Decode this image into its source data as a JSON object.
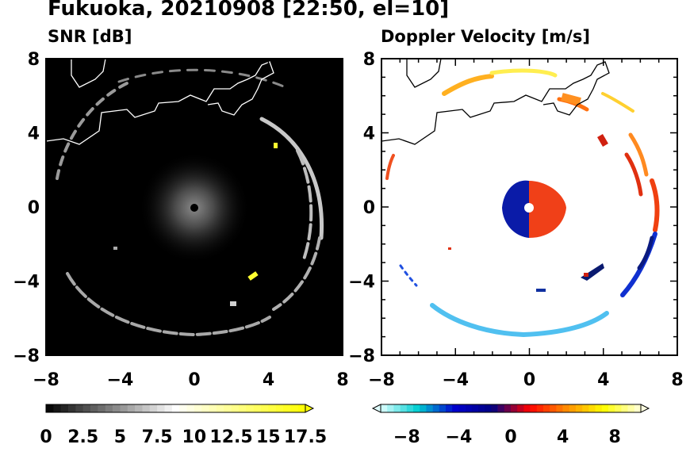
{
  "title": "Fukuoka, 20210908 [22:50, el=10]",
  "chart_data": [
    {
      "type": "heatmap",
      "title": "SNR [dB]",
      "xlim": [
        -8,
        8
      ],
      "ylim": [
        -8,
        8
      ],
      "xticks": [
        "−8",
        "−4",
        "0",
        "4",
        "8"
      ],
      "yticks": [
        "8",
        "4",
        "0",
        "−4",
        "−8"
      ],
      "colorbar": {
        "range": [
          0,
          17.5
        ],
        "tick_labels": [
          "0",
          "2.5",
          "5",
          "7.5",
          "10",
          "12.5",
          "15",
          "17.5"
        ],
        "colors": [
          "#000000",
          "#ffffff",
          "#ffff00"
        ]
      }
    },
    {
      "type": "heatmap",
      "title": "Doppler Velocity [m/s]",
      "xlim": [
        -8,
        8
      ],
      "ylim": [
        -8,
        8
      ],
      "xticks": [
        "−8",
        "−4",
        "0",
        "4",
        "8"
      ],
      "yticks": [
        "8",
        "4",
        "0",
        "−4",
        "−8"
      ],
      "colorbar": {
        "range": [
          -10,
          10
        ],
        "tick_labels": [
          "−8",
          "−4",
          "0",
          "4",
          "8"
        ],
        "colors": [
          "#e0ffff",
          "#00ced1",
          "#0000cd",
          "#000080",
          "#ff0000",
          "#ff8c00",
          "#ffff00",
          "#ffffe0"
        ]
      }
    }
  ]
}
